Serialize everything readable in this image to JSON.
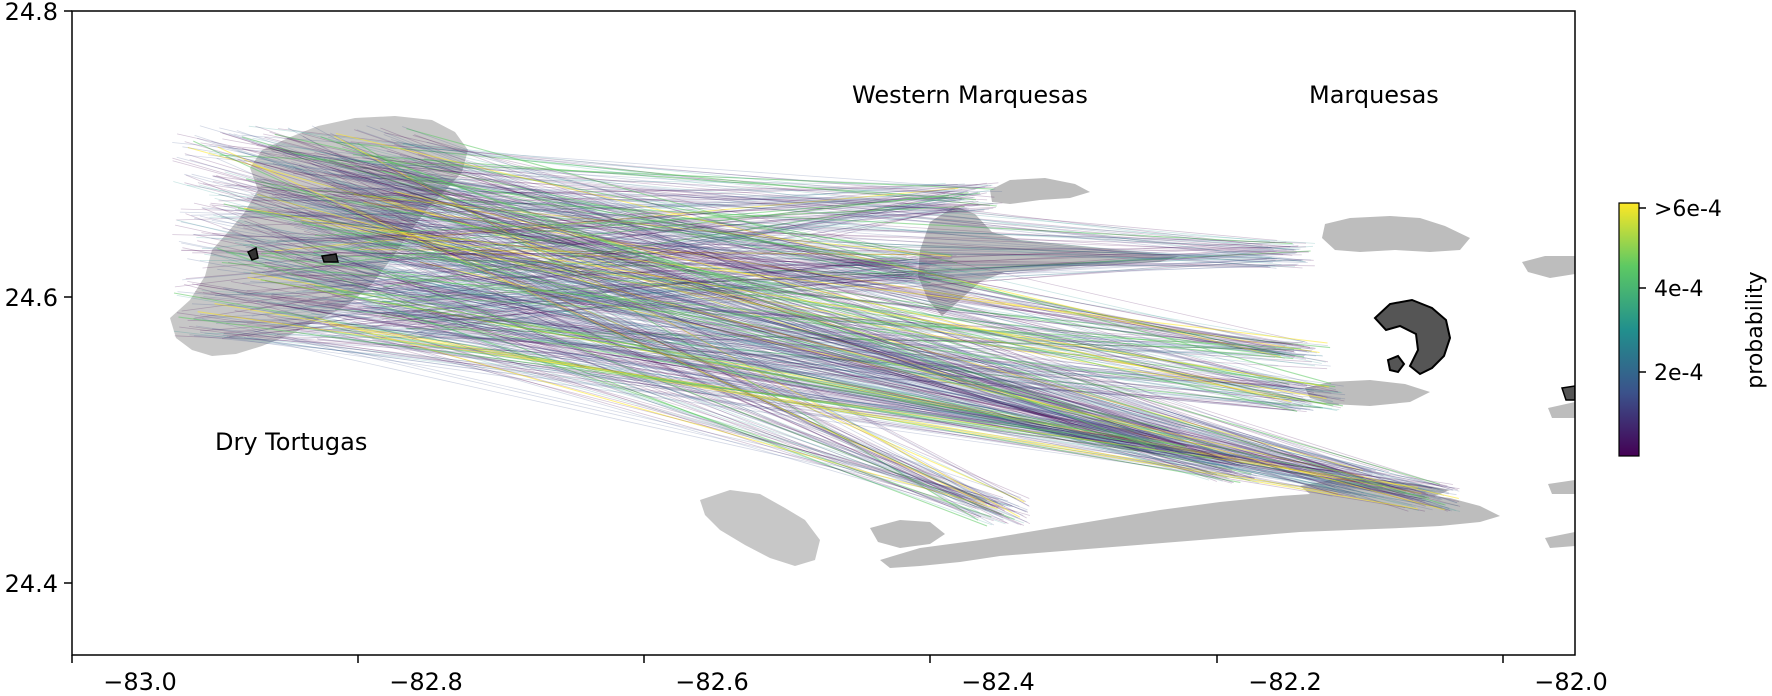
{
  "chart_data": {
    "type": "map",
    "x_ticks": [
      "−83.0",
      "−82.8",
      "−82.6",
      "−82.4",
      "−82.2",
      "−82.0"
    ],
    "y_ticks": [
      "24.8",
      "24.6",
      "24.4"
    ],
    "xlim": [
      -83.05,
      -82.0
    ],
    "ylim": [
      24.35,
      24.8
    ],
    "regions": [
      {
        "name": "Dry Tortugas",
        "lon": -82.91,
        "lat": 24.5
      },
      {
        "name": "Western Marquesas",
        "lon": -82.44,
        "lat": 24.74
      },
      {
        "name": "Marquesas",
        "lon": -82.16,
        "lat": 24.74
      }
    ],
    "connections": {
      "source_lon_range": [
        -82.98,
        -82.8
      ],
      "source_lat_range": [
        24.57,
        24.72
      ],
      "destinations": [
        {
          "lon": -82.42,
          "lat": 24.67
        },
        {
          "lon": -82.45,
          "lat": 24.62
        },
        {
          "lon": -82.2,
          "lat": 24.63
        },
        {
          "lon": -82.19,
          "lat": 24.56
        },
        {
          "lon": -82.18,
          "lat": 24.53
        },
        {
          "lon": -82.29,
          "lat": 24.5
        },
        {
          "lon": -82.24,
          "lat": 24.48
        },
        {
          "lon": -82.4,
          "lat": 24.45
        },
        {
          "lon": -82.15,
          "lat": 24.47
        },
        {
          "lon": -82.1,
          "lat": 24.46
        }
      ]
    },
    "colorbar": {
      "label": "probability",
      "ticks": [
        ">6e-4",
        "4e-4",
        "2e-4"
      ],
      "colormap": [
        "#440154",
        "#3b528b",
        "#21908d",
        "#5dc963",
        "#fde725"
      ]
    },
    "colors": {
      "land": "#bdbdbd",
      "highlight_land": "#555555",
      "frame": "#000000"
    }
  }
}
